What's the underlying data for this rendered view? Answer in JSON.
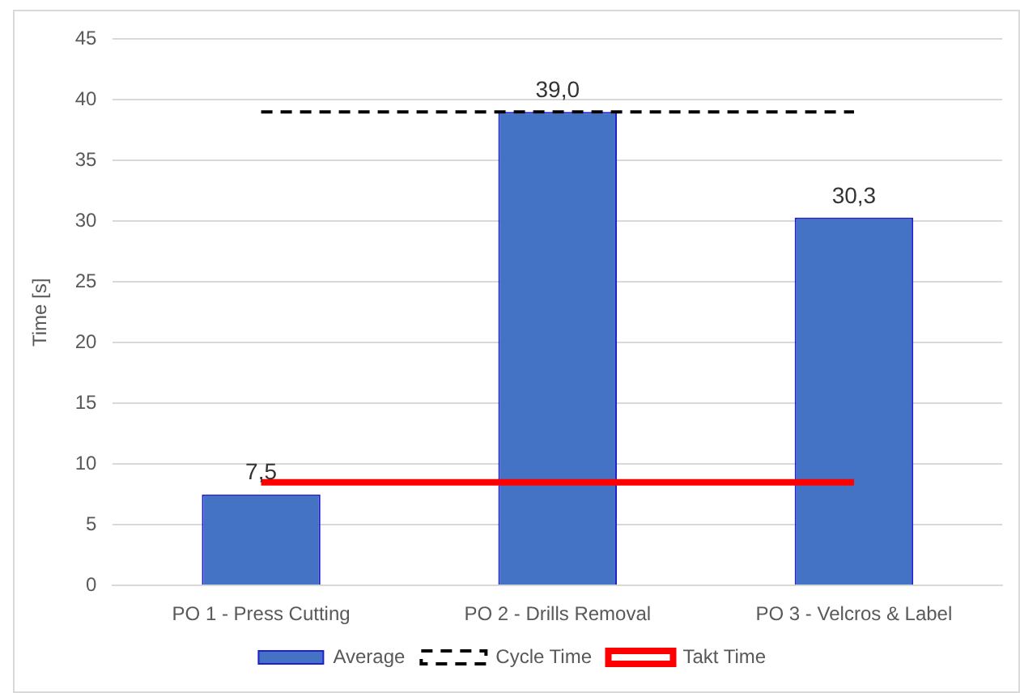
{
  "chart_data": {
    "type": "bar",
    "ylabel": "Time [s]",
    "categories": [
      "PO 1 - Press Cutting",
      "PO 2 - Drills Removal",
      "PO 3 - Velcros & Label"
    ],
    "series": [
      {
        "name": "Average",
        "color": "#4472c4",
        "values": [
          7.5,
          39.0,
          30.3
        ],
        "value_labels": [
          "7,5",
          "39,0",
          "30,3"
        ]
      },
      {
        "name": "Cycle Time",
        "type": "line",
        "color": "#000000",
        "values": [
          39,
          39,
          39
        ],
        "line_style": "dashed"
      },
      {
        "name": "Takt Time",
        "type": "line",
        "color": "#ff0000",
        "values": [
          8.5,
          8.5,
          8.5
        ],
        "line_style": "solid"
      }
    ],
    "ylim": [
      0,
      45
    ],
    "yticks": [
      0,
      5,
      10,
      15,
      20,
      25,
      30,
      35,
      40,
      45
    ],
    "grid": "y",
    "legend": "bottom",
    "marker": "none"
  }
}
